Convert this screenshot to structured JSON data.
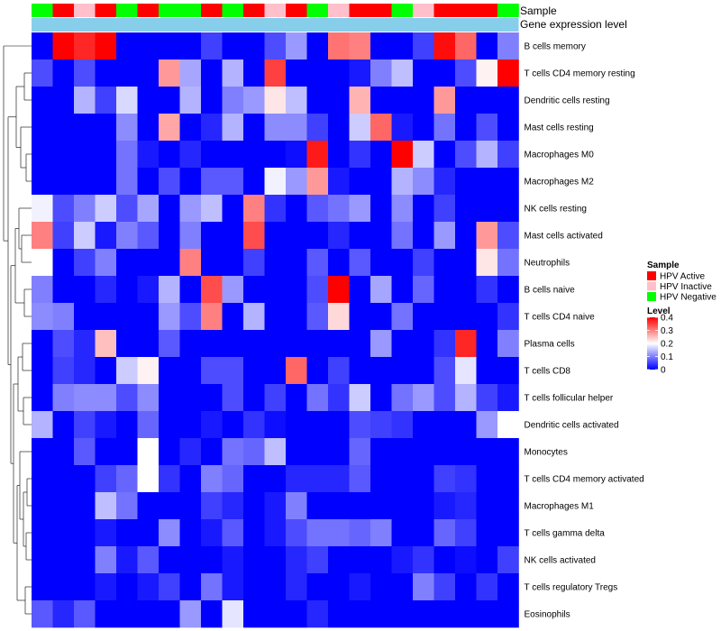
{
  "chart_data": {
    "type": "heatmap",
    "annotations": {
      "sample_label": "Sample",
      "expression_label": "Gene expression level"
    },
    "column_samples": [
      "HPV Negative",
      "HPV Active",
      "HPV Inactive",
      "HPV Active",
      "HPV Negative",
      "HPV Active",
      "HPV Negative",
      "HPV Negative",
      "HPV Active",
      "HPV Negative",
      "HPV Active",
      "HPV Inactive",
      "HPV Active",
      "HPV Negative",
      "HPV Inactive",
      "HPV Active",
      "HPV Active",
      "HPV Negative",
      "HPV Inactive",
      "HPV Active",
      "HPV Active",
      "HPV Active",
      "HPV Negative"
    ],
    "rows": [
      "B cells memory",
      "T cells CD4 memory resting",
      "Dendritic cells resting",
      "Mast cells resting",
      "Macrophages M0",
      "Macrophages M2",
      "NK cells resting",
      "Mast cells activated",
      "Neutrophils",
      "B cells naive",
      "T cells CD4 naive",
      "Plasma cells",
      "T cells CD8",
      "T cells follicular helper",
      "Dendritic cells activated",
      "Monocytes",
      "T cells CD4 memory activated",
      "Macrophages M1",
      "T cells gamma delta",
      "NK cells activated",
      "T cells regulatory  Tregs",
      "Eosinophils"
    ],
    "values": [
      [
        0,
        0.4,
        0.37,
        0.4,
        0,
        0,
        0,
        0,
        0.05,
        0,
        0,
        0.06,
        0.12,
        0,
        0.31,
        0.3,
        0,
        0,
        0.05,
        0.39,
        0.32,
        0,
        0.1
      ],
      [
        0.06,
        0,
        0.06,
        0,
        0,
        0,
        0.28,
        0.13,
        0,
        0.14,
        0,
        0.35,
        0,
        0,
        0,
        0.02,
        0.1,
        0.15,
        0,
        0,
        0.06,
        0.21,
        0.4
      ],
      [
        0,
        0,
        0.14,
        0.05,
        0.17,
        0,
        0,
        0.14,
        0,
        0.1,
        0.12,
        0.22,
        0.15,
        0,
        0,
        0.26,
        0,
        0,
        0,
        0.28,
        0,
        0,
        0
      ],
      [
        0,
        0,
        0,
        0,
        0.11,
        0,
        0.27,
        0,
        0.03,
        0.14,
        0,
        0.11,
        0.11,
        0.05,
        0,
        0.16,
        0.32,
        0.02,
        0,
        0.09,
        0,
        0.06,
        0
      ],
      [
        0,
        0,
        0,
        0,
        0.09,
        0.02,
        0,
        0.03,
        0,
        0,
        0,
        0,
        0.01,
        0.38,
        0,
        0.04,
        0,
        0.4,
        0.16,
        0,
        0.06,
        0.14,
        0.05
      ],
      [
        0,
        0,
        0,
        0,
        0.09,
        0,
        0.06,
        0,
        0.07,
        0.07,
        0,
        0.19,
        0.12,
        0.28,
        0.02,
        0,
        0,
        0.14,
        0.11,
        0.03,
        0,
        0,
        0
      ],
      [
        0.19,
        0.06,
        0.1,
        0.16,
        0.06,
        0.13,
        0,
        0.12,
        0.15,
        0,
        0.3,
        0.04,
        0,
        0.07,
        0.09,
        0.12,
        0,
        0.11,
        0,
        0.05,
        0,
        0,
        0
      ],
      [
        0.3,
        0.05,
        0.16,
        0.02,
        0.1,
        0.07,
        0,
        0.1,
        0,
        0,
        0.34,
        0,
        0,
        0,
        0.03,
        0,
        0,
        0.09,
        0,
        0.12,
        0,
        0.28,
        0.06
      ],
      [
        0.2,
        0,
        0.05,
        0.1,
        0,
        0,
        0,
        0.3,
        0,
        0,
        0.05,
        0,
        0,
        0.07,
        0,
        0.07,
        0,
        0,
        0.05,
        0,
        0,
        0.22,
        0.09
      ],
      [
        0.1,
        0,
        0,
        0.03,
        0,
        0.02,
        0.14,
        0,
        0.34,
        0.12,
        0,
        0,
        0,
        0.06,
        0.4,
        0,
        0.13,
        0,
        0.08,
        0,
        0,
        0.04,
        0
      ],
      [
        0.11,
        0.1,
        0,
        0,
        0,
        0,
        0.12,
        0.06,
        0.3,
        0,
        0.14,
        0,
        0,
        0.07,
        0.23,
        0,
        0,
        0.09,
        0,
        0,
        0,
        0,
        0.04
      ],
      [
        0,
        0.06,
        0.03,
        0.25,
        0,
        0,
        0.07,
        0,
        0,
        0,
        0,
        0,
        0,
        0,
        0,
        0,
        0.12,
        0,
        0,
        0.04,
        0.37,
        0,
        0.1
      ],
      [
        0,
        0.05,
        0.03,
        0,
        0.16,
        0.21,
        0,
        0,
        0.06,
        0.06,
        0,
        0,
        0.32,
        0,
        0.05,
        0,
        0,
        0,
        0,
        0.06,
        0.18,
        0,
        0
      ],
      [
        0,
        0.1,
        0.11,
        0.11,
        0.06,
        0.11,
        0,
        0,
        0,
        0.06,
        0,
        0.05,
        0,
        0.09,
        0.04,
        0.16,
        0,
        0.09,
        0.12,
        0.06,
        0.14,
        0.05,
        0.02
      ],
      [
        0.14,
        0,
        0.05,
        0.02,
        0,
        0.08,
        0,
        0,
        0.02,
        0,
        0.04,
        0.01,
        0,
        0,
        0,
        0.06,
        0.05,
        0.04,
        0,
        0,
        0,
        0.12,
        0.2
      ],
      [
        0,
        0,
        0.07,
        0,
        0,
        0.2,
        0,
        0.03,
        0,
        0.09,
        0.08,
        0.15,
        0,
        0,
        0,
        0.08,
        0,
        0,
        0,
        0,
        0,
        0,
        0
      ],
      [
        0,
        0,
        0,
        0.05,
        0.08,
        0.2,
        0.04,
        0,
        0.1,
        0.08,
        0,
        0,
        0.03,
        0.03,
        0.03,
        0.07,
        0,
        0,
        0,
        0.05,
        0.04,
        0,
        0
      ],
      [
        0,
        0,
        0,
        0.15,
        0.09,
        0,
        0,
        0,
        0.05,
        0.03,
        0,
        0.02,
        0.1,
        0,
        0,
        0,
        0,
        0,
        0,
        0.02,
        0.03,
        0,
        0
      ],
      [
        0,
        0,
        0,
        0.02,
        0,
        0,
        0.11,
        0,
        0.02,
        0.07,
        0,
        0.02,
        0.06,
        0.09,
        0.09,
        0.08,
        0.1,
        0,
        0,
        0.08,
        0.05,
        0,
        0
      ],
      [
        0,
        0,
        0,
        0.1,
        0.02,
        0.07,
        0,
        0,
        0,
        0.02,
        0,
        0,
        0.03,
        0.05,
        0,
        0,
        0,
        0.02,
        0.04,
        0,
        0.01,
        0,
        0.05
      ],
      [
        0,
        0,
        0,
        0.02,
        0,
        0.02,
        0.05,
        0,
        0.09,
        0.02,
        0,
        0,
        0.03,
        0,
        0,
        0.02,
        0,
        0,
        0.1,
        0.05,
        0,
        0.04,
        0
      ],
      [
        0.07,
        0.03,
        0.07,
        0,
        0,
        0,
        0,
        0.12,
        0,
        0.18,
        0,
        0,
        0,
        0.03,
        0,
        0,
        0,
        0,
        0,
        0,
        0,
        0,
        0
      ]
    ],
    "legend_sample": {
      "title": "Sample",
      "items": [
        {
          "name": "HPV Active",
          "color": "#ff0000"
        },
        {
          "name": "HPV Inactive",
          "color": "#ffc0cb"
        },
        {
          "name": "HPV Negative",
          "color": "#00ff00"
        }
      ]
    },
    "legend_level": {
      "title": "Level",
      "ticks": [
        0.4,
        0.3,
        0.2,
        0.1,
        0
      ],
      "range": [
        0,
        0.4
      ],
      "low_color": "#0000ff",
      "mid_color": "#ffffff",
      "high_color": "#ff0000"
    },
    "expression_bar_color": "#87ceeb"
  }
}
